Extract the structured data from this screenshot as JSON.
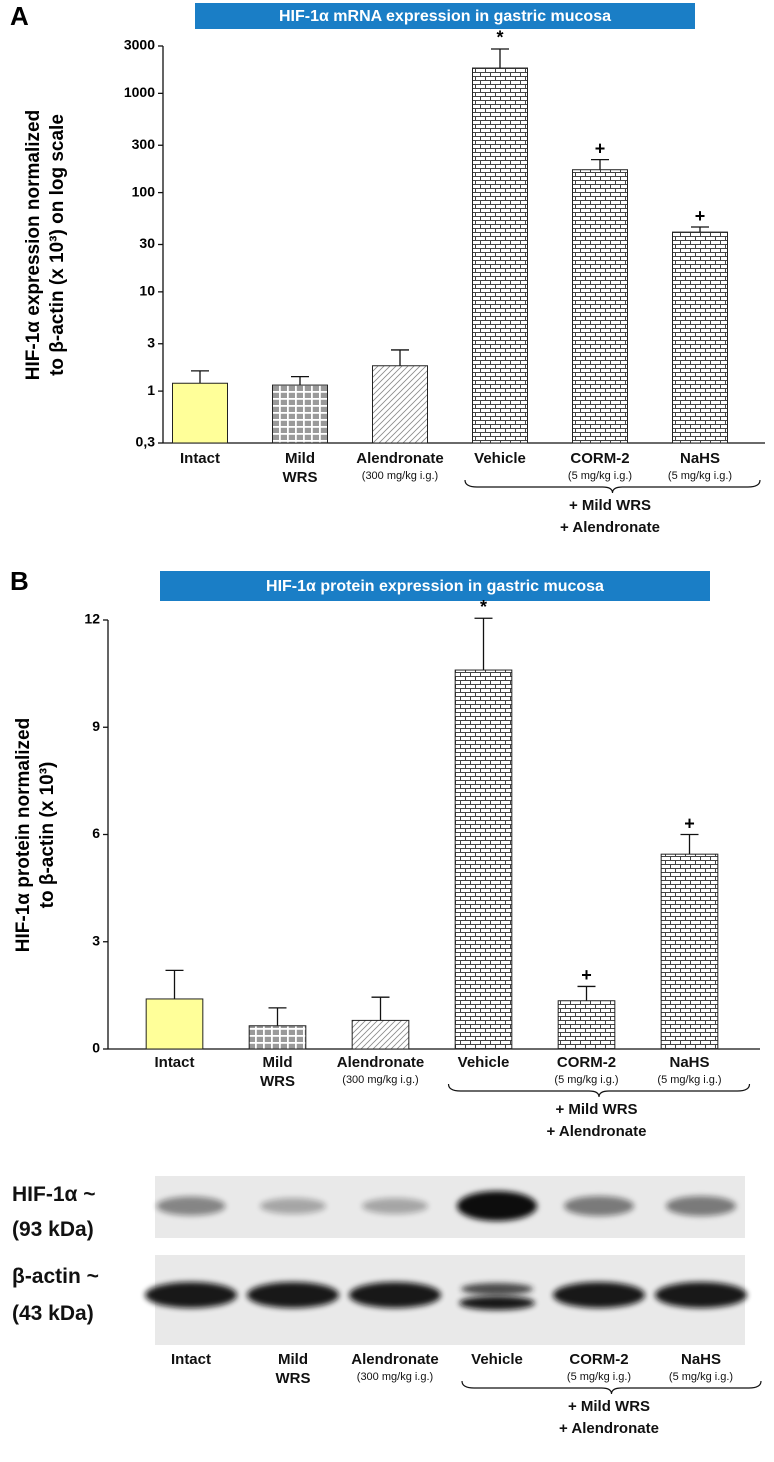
{
  "chart_data": [
    {
      "type": "bar",
      "panel": "A",
      "title": "HIF-1α mRNA expression in gastric mucosa",
      "ylabel": [
        "HIF-1α expression normalized",
        "to β-actin (x 10³) on log scale"
      ],
      "categories": [
        "Intact",
        "Mild WRS",
        "Alendronate",
        "Vehicle",
        "CORM-2",
        "NaHS"
      ],
      "category_notes": [
        null,
        null,
        "(300 mg/kg i.g.)",
        null,
        "(5 mg/kg i.g.)",
        "(5 mg/kg i.g.)"
      ],
      "group_label": [
        "+ Mild WRS",
        "+ Alendronate"
      ],
      "values": [
        1.2,
        1.15,
        1.8,
        1800,
        170,
        40
      ],
      "errors": [
        0.4,
        0.25,
        0.8,
        1000,
        45,
        5
      ],
      "annotations": [
        null,
        null,
        null,
        "*",
        "+",
        "+"
      ],
      "colors": [
        "#ffff99",
        "#9a9a9a",
        "#8a8a8a",
        "#444444",
        "#444444",
        "#444444"
      ],
      "patterns": [
        "solid",
        "grid",
        "hatch",
        "brick",
        "brick",
        "brick"
      ],
      "ylog": true,
      "ylim": [
        0.3,
        3000
      ],
      "yticks": [
        {
          "value": 0.3,
          "label": "0,3"
        },
        1,
        3,
        10,
        30,
        100,
        300,
        1000,
        3000
      ]
    },
    {
      "type": "bar",
      "panel": "B",
      "title": "HIF-1α protein expression in gastric mucosa",
      "ylabel": [
        "HIF-1α protein normalized",
        "to β-actin (x 10³)"
      ],
      "categories": [
        "Intact",
        "Mild WRS",
        "Alendronate",
        "Vehicle",
        "CORM-2",
        "NaHS"
      ],
      "category_notes": [
        null,
        null,
        "(300 mg/kg i.g.)",
        null,
        "(5 mg/kg i.g.)",
        "(5 mg/kg i.g.)"
      ],
      "group_label": [
        "+ Mild WRS",
        "+ Alendronate"
      ],
      "values": [
        1.4,
        0.65,
        0.8,
        10.6,
        1.35,
        5.45
      ],
      "errors": [
        0.8,
        0.5,
        0.65,
        1.45,
        0.4,
        0.55
      ],
      "annotations": [
        null,
        null,
        null,
        "*",
        "+",
        "+"
      ],
      "colors": [
        "#ffff99",
        "#9a9a9a",
        "#8a8a8a",
        "#444444",
        "#444444",
        "#444444"
      ],
      "patterns": [
        "solid",
        "grid",
        "hatch",
        "brick",
        "brick",
        "brick"
      ],
      "ylog": false,
      "ylim": [
        0,
        12
      ],
      "yticks": [
        0,
        3,
        6,
        9,
        12
      ]
    }
  ],
  "blot": {
    "rows": [
      {
        "label": "HIF-1α ~",
        "size": "(93 kDa)"
      },
      {
        "label": "β-actin ~",
        "size": "(43 kDa)"
      }
    ],
    "categories": [
      "Intact",
      "Mild WRS",
      "Alendronate",
      "Vehicle",
      "CORM-2",
      "NaHS"
    ],
    "category_notes": [
      null,
      null,
      "(300 mg/kg i.g.)",
      null,
      "(5 mg/kg i.g.)",
      "(5 mg/kg i.g.)"
    ],
    "group_label": [
      "+ Mild WRS",
      "+ Alendronate"
    ]
  }
}
